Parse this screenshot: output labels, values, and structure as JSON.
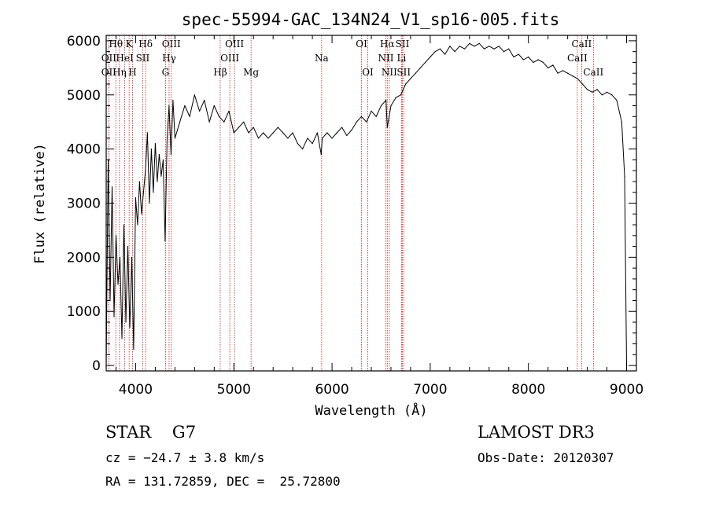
{
  "chart_data": {
    "type": "line",
    "title": "spec-55994-GAC_134N24_V1_sp16-005.fits",
    "xlabel": "Wavelength (Å)",
    "ylabel": "Flux (relative)",
    "xlim": [
      3700,
      9100
    ],
    "ylim": [
      -100,
      6100
    ],
    "xticks": [
      4000,
      5000,
      6000,
      7000,
      8000,
      9000
    ],
    "yticks": [
      0,
      1000,
      2000,
      3000,
      4000,
      5000,
      6000
    ],
    "grid": false,
    "line_color": "#000000",
    "marker_color": "#b22222",
    "series": [
      {
        "name": "flux",
        "x": [
          3700,
          3720,
          3740,
          3760,
          3780,
          3800,
          3820,
          3840,
          3860,
          3880,
          3900,
          3920,
          3940,
          3960,
          3980,
          4000,
          4020,
          4040,
          4060,
          4080,
          4100,
          4120,
          4140,
          4160,
          4180,
          4200,
          4220,
          4240,
          4260,
          4280,
          4300,
          4320,
          4340,
          4360,
          4380,
          4400,
          4450,
          4500,
          4550,
          4600,
          4650,
          4700,
          4750,
          4800,
          4850,
          4900,
          4950,
          5000,
          5050,
          5100,
          5150,
          5200,
          5250,
          5300,
          5350,
          5400,
          5450,
          5500,
          5550,
          5600,
          5650,
          5700,
          5750,
          5800,
          5850,
          5890,
          5900,
          5950,
          6000,
          6050,
          6100,
          6150,
          6200,
          6250,
          6300,
          6350,
          6400,
          6450,
          6500,
          6550,
          6563,
          6600,
          6650,
          6700,
          6750,
          6800,
          6850,
          6900,
          6950,
          7000,
          7050,
          7100,
          7150,
          7200,
          7250,
          7300,
          7350,
          7400,
          7450,
          7500,
          7550,
          7600,
          7650,
          7700,
          7750,
          7800,
          7850,
          7900,
          7950,
          8000,
          8050,
          8100,
          8150,
          8200,
          8250,
          8300,
          8350,
          8400,
          8450,
          8500,
          8550,
          8600,
          8650,
          8700,
          8750,
          8800,
          8850,
          8900,
          8950,
          8980,
          9000
        ],
        "values": [
          0,
          3800,
          1200,
          3300,
          900,
          2400,
          1500,
          2000,
          500,
          2600,
          800,
          2200,
          700,
          2000,
          300,
          3100,
          2600,
          3400,
          2800,
          3200,
          3600,
          4300,
          3000,
          4000,
          3200,
          4100,
          3400,
          3900,
          3500,
          3800,
          2300,
          4200,
          4800,
          3900,
          4900,
          4200,
          4500,
          4800,
          4600,
          5000,
          4700,
          4900,
          4500,
          4800,
          4600,
          4500,
          4700,
          4300,
          4400,
          4500,
          4300,
          4400,
          4200,
          4300,
          4200,
          4300,
          4400,
          4300,
          4200,
          4300,
          4100,
          4000,
          4200,
          4100,
          4300,
          3900,
          4200,
          4300,
          4200,
          4300,
          4400,
          4250,
          4350,
          4500,
          4600,
          4500,
          4700,
          4600,
          4800,
          4900,
          4400,
          4800,
          4950,
          5000,
          5200,
          5300,
          5400,
          5500,
          5600,
          5700,
          5800,
          5850,
          5750,
          5900,
          5800,
          5900,
          5850,
          5950,
          5900,
          5950,
          5850,
          5900,
          5850,
          5900,
          5800,
          5850,
          5700,
          5750,
          5650,
          5700,
          5600,
          5650,
          5600,
          5500,
          5550,
          5400,
          5450,
          5400,
          5350,
          5300,
          5200,
          5100,
          5050,
          5100,
          5000,
          5050,
          5000,
          4900,
          4500,
          3500,
          0
        ]
      }
    ],
    "lines": [
      {
        "name": "Hθ",
        "wave": 3798,
        "row": 0
      },
      {
        "name": "OII",
        "wave": 3727,
        "row": 1
      },
      {
        "name": "OII",
        "wave": 3727,
        "row": 2
      },
      {
        "name": "Hη",
        "wave": 3835,
        "row": 2
      },
      {
        "name": "K",
        "wave": 3933.7,
        "row": 0
      },
      {
        "name": "HeI",
        "wave": 3889,
        "row": 1
      },
      {
        "name": "H",
        "wave": 3968.5,
        "row": 2
      },
      {
        "name": "Hδ",
        "wave": 4101.7,
        "row": 0
      },
      {
        "name": "SII",
        "wave": 4072,
        "row": 1
      },
      {
        "name": "OIII",
        "wave": 4363,
        "row": 0
      },
      {
        "name": "Hγ",
        "wave": 4340.5,
        "row": 1
      },
      {
        "name": "G",
        "wave": 4304.4,
        "row": 2
      },
      {
        "name": "Hβ",
        "wave": 4861.3,
        "row": 2
      },
      {
        "name": "OIII",
        "wave": 5006.8,
        "row": 0
      },
      {
        "name": "OIII",
        "wave": 4958.9,
        "row": 1
      },
      {
        "name": "Mg",
        "wave": 5175.3,
        "row": 2
      },
      {
        "name": "Na",
        "wave": 5894,
        "row": 1
      },
      {
        "name": "OI",
        "wave": 6300.3,
        "row": 0
      },
      {
        "name": "OI",
        "wave": 6363.8,
        "row": 2
      },
      {
        "name": "Hα",
        "wave": 6562.8,
        "row": 0
      },
      {
        "name": "NII",
        "wave": 6548,
        "row": 1
      },
      {
        "name": "NII",
        "wave": 6583.5,
        "row": 2
      },
      {
        "name": "SII",
        "wave": 6716.4,
        "row": 0
      },
      {
        "name": "Li",
        "wave": 6707.8,
        "row": 1
      },
      {
        "name": "SII",
        "wave": 6730.8,
        "row": 2
      },
      {
        "name": "CaII",
        "wave": 8542.1,
        "row": 0
      },
      {
        "name": "CaII",
        "wave": 8498,
        "row": 1
      },
      {
        "name": "CaII",
        "wave": 8662.1,
        "row": 2
      }
    ]
  },
  "footer": {
    "classification": "STAR    G7",
    "survey": "LAMOST DR3",
    "redshift": "cz = −24.7 ± 3.8 km/s",
    "obs_date": "Obs-Date: 20120307",
    "coordinates": "RA = 131.72859, DEC =  25.72800"
  }
}
